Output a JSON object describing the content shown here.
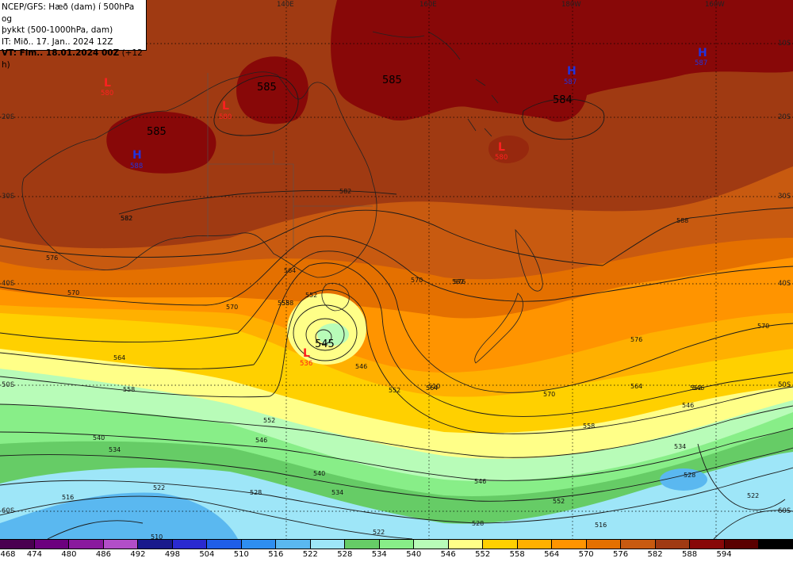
{
  "info": {
    "line1": "NCEP/GFS: Hæð (dam) í 500hPa og",
    "line2": "þykkt (500-1000hPa, dam)",
    "line3": "IT: Mið.. 17. Jan.. 2024 12Z",
    "line4_bold": "VT: Fim.. 18.01.2024 00Z",
    "line4_rest": "(+12 h)"
  },
  "longitude_labels": [
    "140E",
    "160E",
    "180W",
    "160W"
  ],
  "latitude_labels": [
    "10S",
    "20S",
    "30S",
    "40S",
    "50S",
    "60S"
  ],
  "colorbar": {
    "colors": [
      "#4a0050",
      "#6c007e",
      "#8a1a9e",
      "#b24ec8",
      "#1a1a8c",
      "#2a2ad0",
      "#1f5ee8",
      "#2e8ef0",
      "#5ab8f0",
      "#9ee6f8",
      "#66cc66",
      "#88ee88",
      "#b8fcb8",
      "#ffff88",
      "#ffd000",
      "#ffb000",
      "#ff9400",
      "#e47000",
      "#c85a10",
      "#a03a12",
      "#880808",
      "#5a0000",
      "#000000"
    ],
    "labels": [
      "468",
      "474",
      "480",
      "486",
      "492",
      "498",
      "504",
      "510",
      "516",
      "522",
      "528",
      "534",
      "540",
      "546",
      "552",
      "558",
      "564",
      "570",
      "576",
      "582",
      "588",
      "594"
    ]
  },
  "centers": [
    {
      "type": "L",
      "value": "580",
      "color": "#ff2020"
    },
    {
      "type": "L",
      "value": "580",
      "color": "#ff2020"
    },
    {
      "type": "H",
      "value": "588",
      "color": "#2233dd"
    },
    {
      "type": "H",
      "value": "587",
      "color": "#2233dd"
    },
    {
      "type": "H",
      "value": "587",
      "color": "#2233dd"
    },
    {
      "type": "L",
      "value": "580",
      "color": "#ff2020"
    },
    {
      "type": "L",
      "value": "536",
      "color": "#ff2020"
    }
  ],
  "height_labels": [
    "585",
    "585",
    "585",
    "584",
    "545"
  ],
  "contour_labels": [
    "582",
    "582",
    "576",
    "570",
    "570",
    "564",
    "558",
    "552",
    "546",
    "540",
    "534",
    "528",
    "522",
    "516",
    "510",
    "588",
    "582",
    "576",
    "570",
    "564",
    "558",
    "552",
    "546",
    "540",
    "534",
    "528",
    "522",
    "564",
    "570",
    "576",
    "582",
    "570",
    "564",
    "558",
    "552",
    "546",
    "546",
    "552",
    "534",
    "528",
    "516",
    "522",
    "510",
    "546",
    "552",
    "558",
    "558"
  ]
}
